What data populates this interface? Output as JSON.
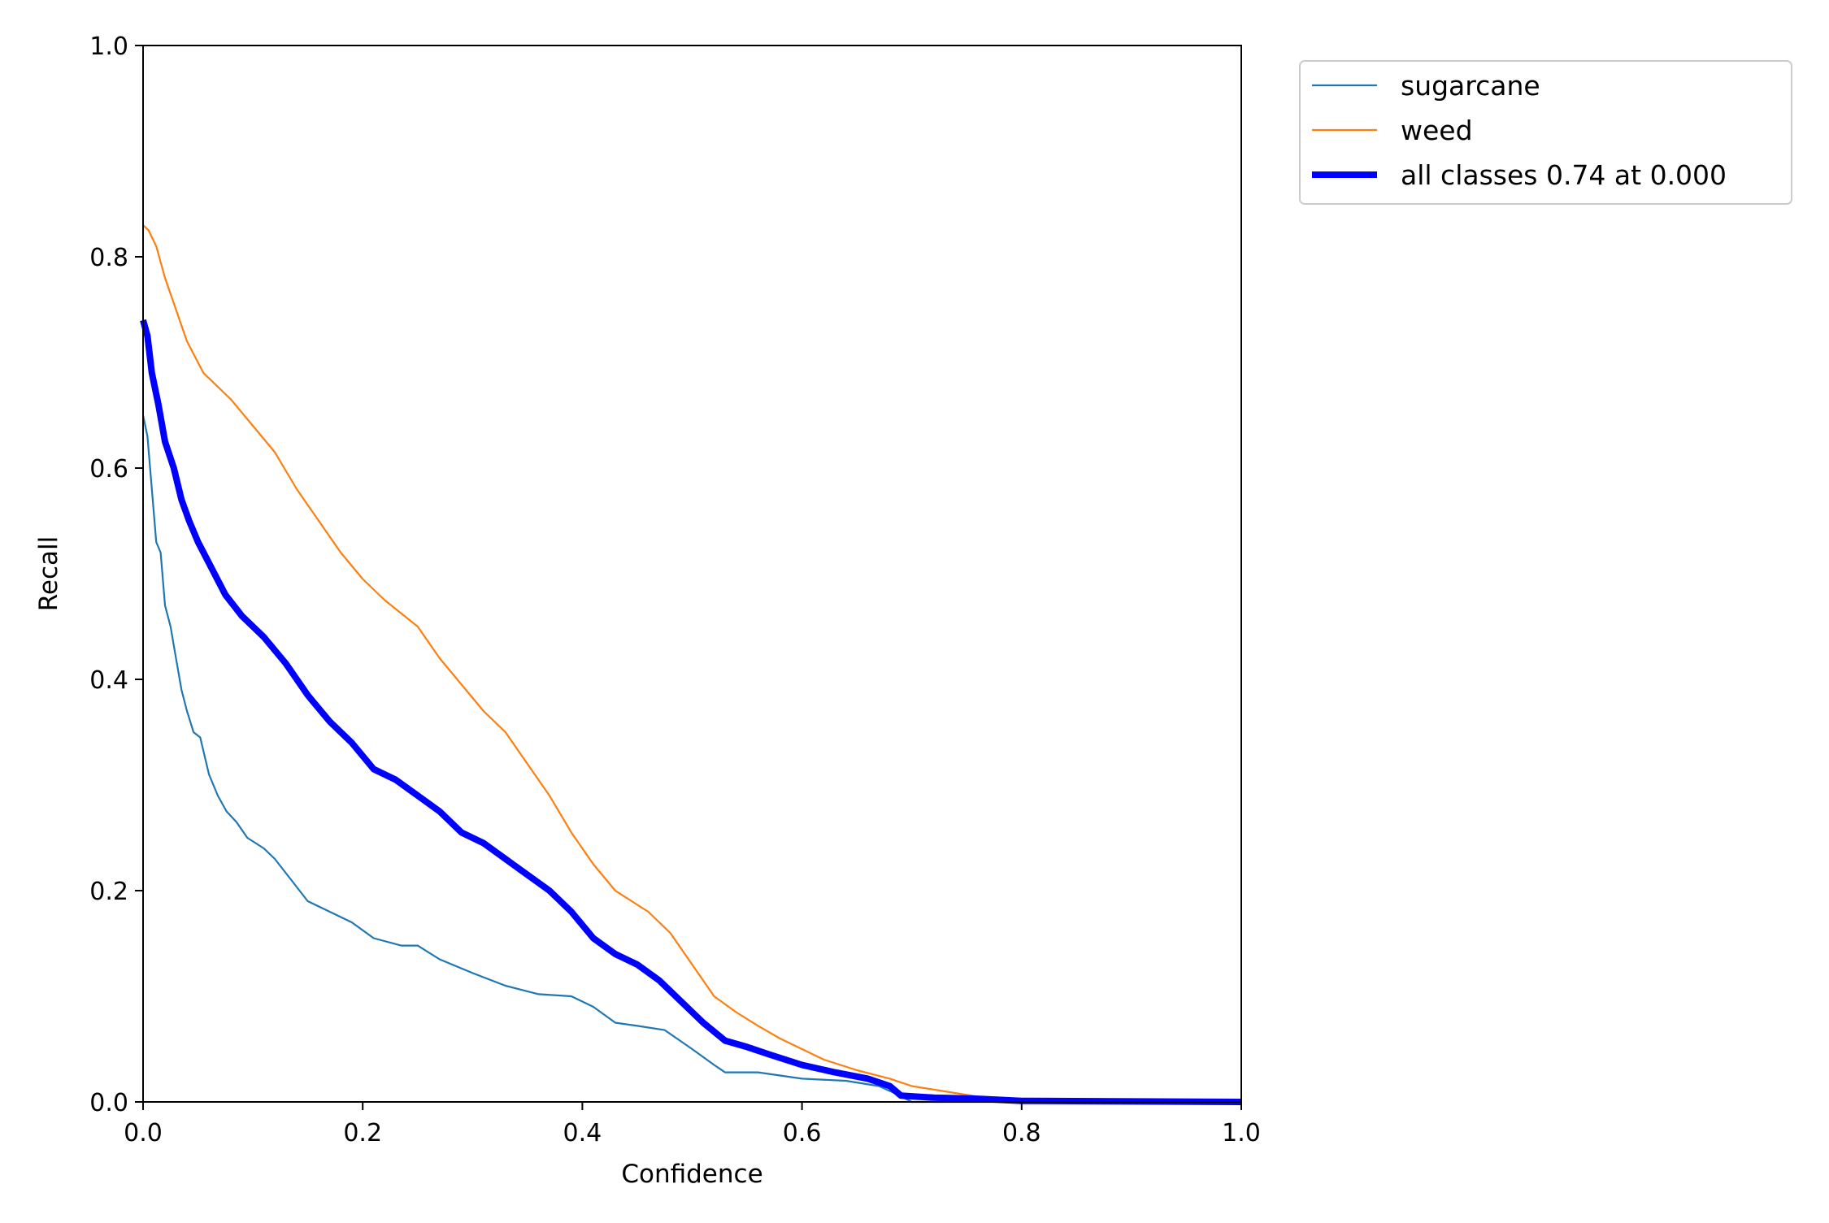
{
  "chart_data": {
    "type": "line",
    "title": "",
    "xlabel": "Confidence",
    "ylabel": "Recall",
    "xlim": [
      0.0,
      1.0
    ],
    "ylim": [
      0.0,
      1.0
    ],
    "grid": false,
    "legend_placement": "outside-top-right",
    "xticks": [
      "0.0",
      "0.2",
      "0.4",
      "0.6",
      "0.8",
      "1.0"
    ],
    "yticks": [
      "0.0",
      "0.2",
      "0.4",
      "0.6",
      "0.8",
      "1.0"
    ],
    "series": [
      {
        "name": "sugarcane",
        "color": "#1f77b4",
        "width": "thin",
        "points": [
          [
            0.0,
            0.65
          ],
          [
            0.004,
            0.63
          ],
          [
            0.008,
            0.58
          ],
          [
            0.012,
            0.53
          ],
          [
            0.016,
            0.52
          ],
          [
            0.02,
            0.47
          ],
          [
            0.025,
            0.45
          ],
          [
            0.03,
            0.42
          ],
          [
            0.035,
            0.39
          ],
          [
            0.04,
            0.37
          ],
          [
            0.046,
            0.35
          ],
          [
            0.052,
            0.345
          ],
          [
            0.06,
            0.31
          ],
          [
            0.068,
            0.29
          ],
          [
            0.076,
            0.275
          ],
          [
            0.085,
            0.265
          ],
          [
            0.095,
            0.25
          ],
          [
            0.11,
            0.24
          ],
          [
            0.12,
            0.23
          ],
          [
            0.135,
            0.21
          ],
          [
            0.15,
            0.19
          ],
          [
            0.17,
            0.18
          ],
          [
            0.19,
            0.17
          ],
          [
            0.21,
            0.155
          ],
          [
            0.235,
            0.148
          ],
          [
            0.25,
            0.148
          ],
          [
            0.27,
            0.135
          ],
          [
            0.3,
            0.122
          ],
          [
            0.33,
            0.11
          ],
          [
            0.36,
            0.102
          ],
          [
            0.39,
            0.1
          ],
          [
            0.41,
            0.09
          ],
          [
            0.43,
            0.075
          ],
          [
            0.45,
            0.072
          ],
          [
            0.475,
            0.068
          ],
          [
            0.5,
            0.05
          ],
          [
            0.52,
            0.035
          ],
          [
            0.53,
            0.028
          ],
          [
            0.56,
            0.028
          ],
          [
            0.6,
            0.022
          ],
          [
            0.64,
            0.02
          ],
          [
            0.67,
            0.015
          ],
          [
            0.685,
            0.008
          ],
          [
            0.7,
            0.0
          ],
          [
            1.0,
            0.0
          ]
        ]
      },
      {
        "name": "weed",
        "color": "#ff7f0e",
        "width": "thin",
        "points": [
          [
            0.0,
            0.83
          ],
          [
            0.005,
            0.825
          ],
          [
            0.012,
            0.81
          ],
          [
            0.02,
            0.78
          ],
          [
            0.03,
            0.75
          ],
          [
            0.04,
            0.72
          ],
          [
            0.055,
            0.69
          ],
          [
            0.08,
            0.665
          ],
          [
            0.1,
            0.64
          ],
          [
            0.12,
            0.615
          ],
          [
            0.14,
            0.58
          ],
          [
            0.16,
            0.55
          ],
          [
            0.18,
            0.52
          ],
          [
            0.2,
            0.495
          ],
          [
            0.22,
            0.475
          ],
          [
            0.25,
            0.45
          ],
          [
            0.27,
            0.42
          ],
          [
            0.29,
            0.395
          ],
          [
            0.31,
            0.37
          ],
          [
            0.33,
            0.35
          ],
          [
            0.35,
            0.32
          ],
          [
            0.37,
            0.29
          ],
          [
            0.39,
            0.255
          ],
          [
            0.41,
            0.225
          ],
          [
            0.43,
            0.2
          ],
          [
            0.46,
            0.18
          ],
          [
            0.48,
            0.16
          ],
          [
            0.5,
            0.13
          ],
          [
            0.52,
            0.1
          ],
          [
            0.54,
            0.085
          ],
          [
            0.56,
            0.072
          ],
          [
            0.58,
            0.06
          ],
          [
            0.6,
            0.05
          ],
          [
            0.62,
            0.04
          ],
          [
            0.65,
            0.03
          ],
          [
            0.68,
            0.022
          ],
          [
            0.7,
            0.015
          ],
          [
            0.73,
            0.01
          ],
          [
            0.76,
            0.005
          ],
          [
            0.8,
            0.002
          ],
          [
            0.85,
            0.001
          ],
          [
            1.0,
            0.0
          ]
        ]
      },
      {
        "name": "all classes 0.74 at 0.000",
        "color": "#0000ff",
        "width": "thick",
        "points": [
          [
            0.0,
            0.74
          ],
          [
            0.004,
            0.725
          ],
          [
            0.008,
            0.69
          ],
          [
            0.014,
            0.66
          ],
          [
            0.02,
            0.625
          ],
          [
            0.028,
            0.6
          ],
          [
            0.035,
            0.57
          ],
          [
            0.042,
            0.55
          ],
          [
            0.05,
            0.53
          ],
          [
            0.06,
            0.51
          ],
          [
            0.075,
            0.48
          ],
          [
            0.09,
            0.46
          ],
          [
            0.11,
            0.44
          ],
          [
            0.13,
            0.415
          ],
          [
            0.15,
            0.385
          ],
          [
            0.17,
            0.36
          ],
          [
            0.19,
            0.34
          ],
          [
            0.21,
            0.315
          ],
          [
            0.23,
            0.305
          ],
          [
            0.25,
            0.29
          ],
          [
            0.27,
            0.275
          ],
          [
            0.29,
            0.255
          ],
          [
            0.31,
            0.245
          ],
          [
            0.33,
            0.23
          ],
          [
            0.35,
            0.215
          ],
          [
            0.37,
            0.2
          ],
          [
            0.39,
            0.18
          ],
          [
            0.41,
            0.155
          ],
          [
            0.43,
            0.14
          ],
          [
            0.45,
            0.13
          ],
          [
            0.47,
            0.115
          ],
          [
            0.49,
            0.095
          ],
          [
            0.51,
            0.075
          ],
          [
            0.53,
            0.058
          ],
          [
            0.55,
            0.052
          ],
          [
            0.57,
            0.045
          ],
          [
            0.6,
            0.035
          ],
          [
            0.63,
            0.028
          ],
          [
            0.66,
            0.022
          ],
          [
            0.68,
            0.015
          ],
          [
            0.69,
            0.006
          ],
          [
            0.72,
            0.004
          ],
          [
            0.76,
            0.003
          ],
          [
            0.8,
            0.001
          ],
          [
            1.0,
            0.0
          ]
        ]
      }
    ]
  }
}
